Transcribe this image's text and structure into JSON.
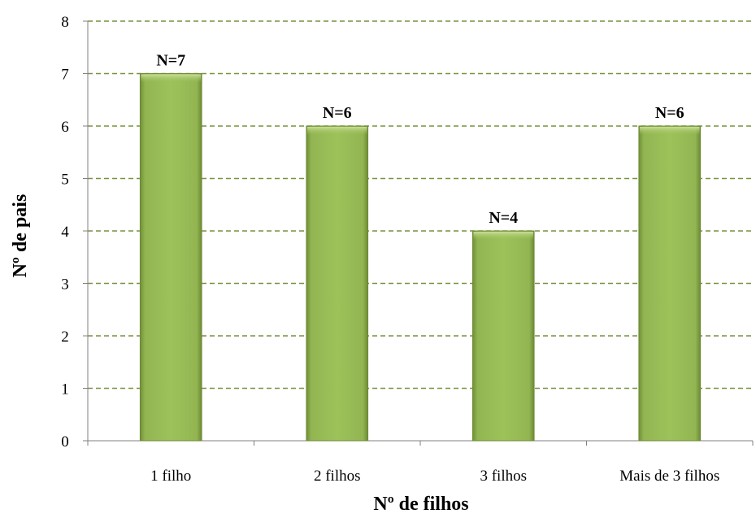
{
  "chart_data": {
    "type": "bar",
    "categories": [
      "1 filho",
      "2 filhos",
      "3 filhos",
      "Mais de 3 filhos"
    ],
    "values": [
      7,
      6,
      4,
      6
    ],
    "data_labels": [
      "N=7",
      "N=6",
      "N=4",
      "N=6"
    ],
    "xlabel": "Nº de filhos",
    "ylabel": "Nº de pais",
    "ylim": [
      0,
      8
    ],
    "yticks": [
      "0",
      "1",
      "2",
      "3",
      "4",
      "5",
      "6",
      "7",
      "8"
    ],
    "grid": true,
    "colors": {
      "bar": "#9bbb59",
      "bar_edge": "#6f8a35",
      "grid": "#77933c",
      "axis": "#808080"
    }
  }
}
